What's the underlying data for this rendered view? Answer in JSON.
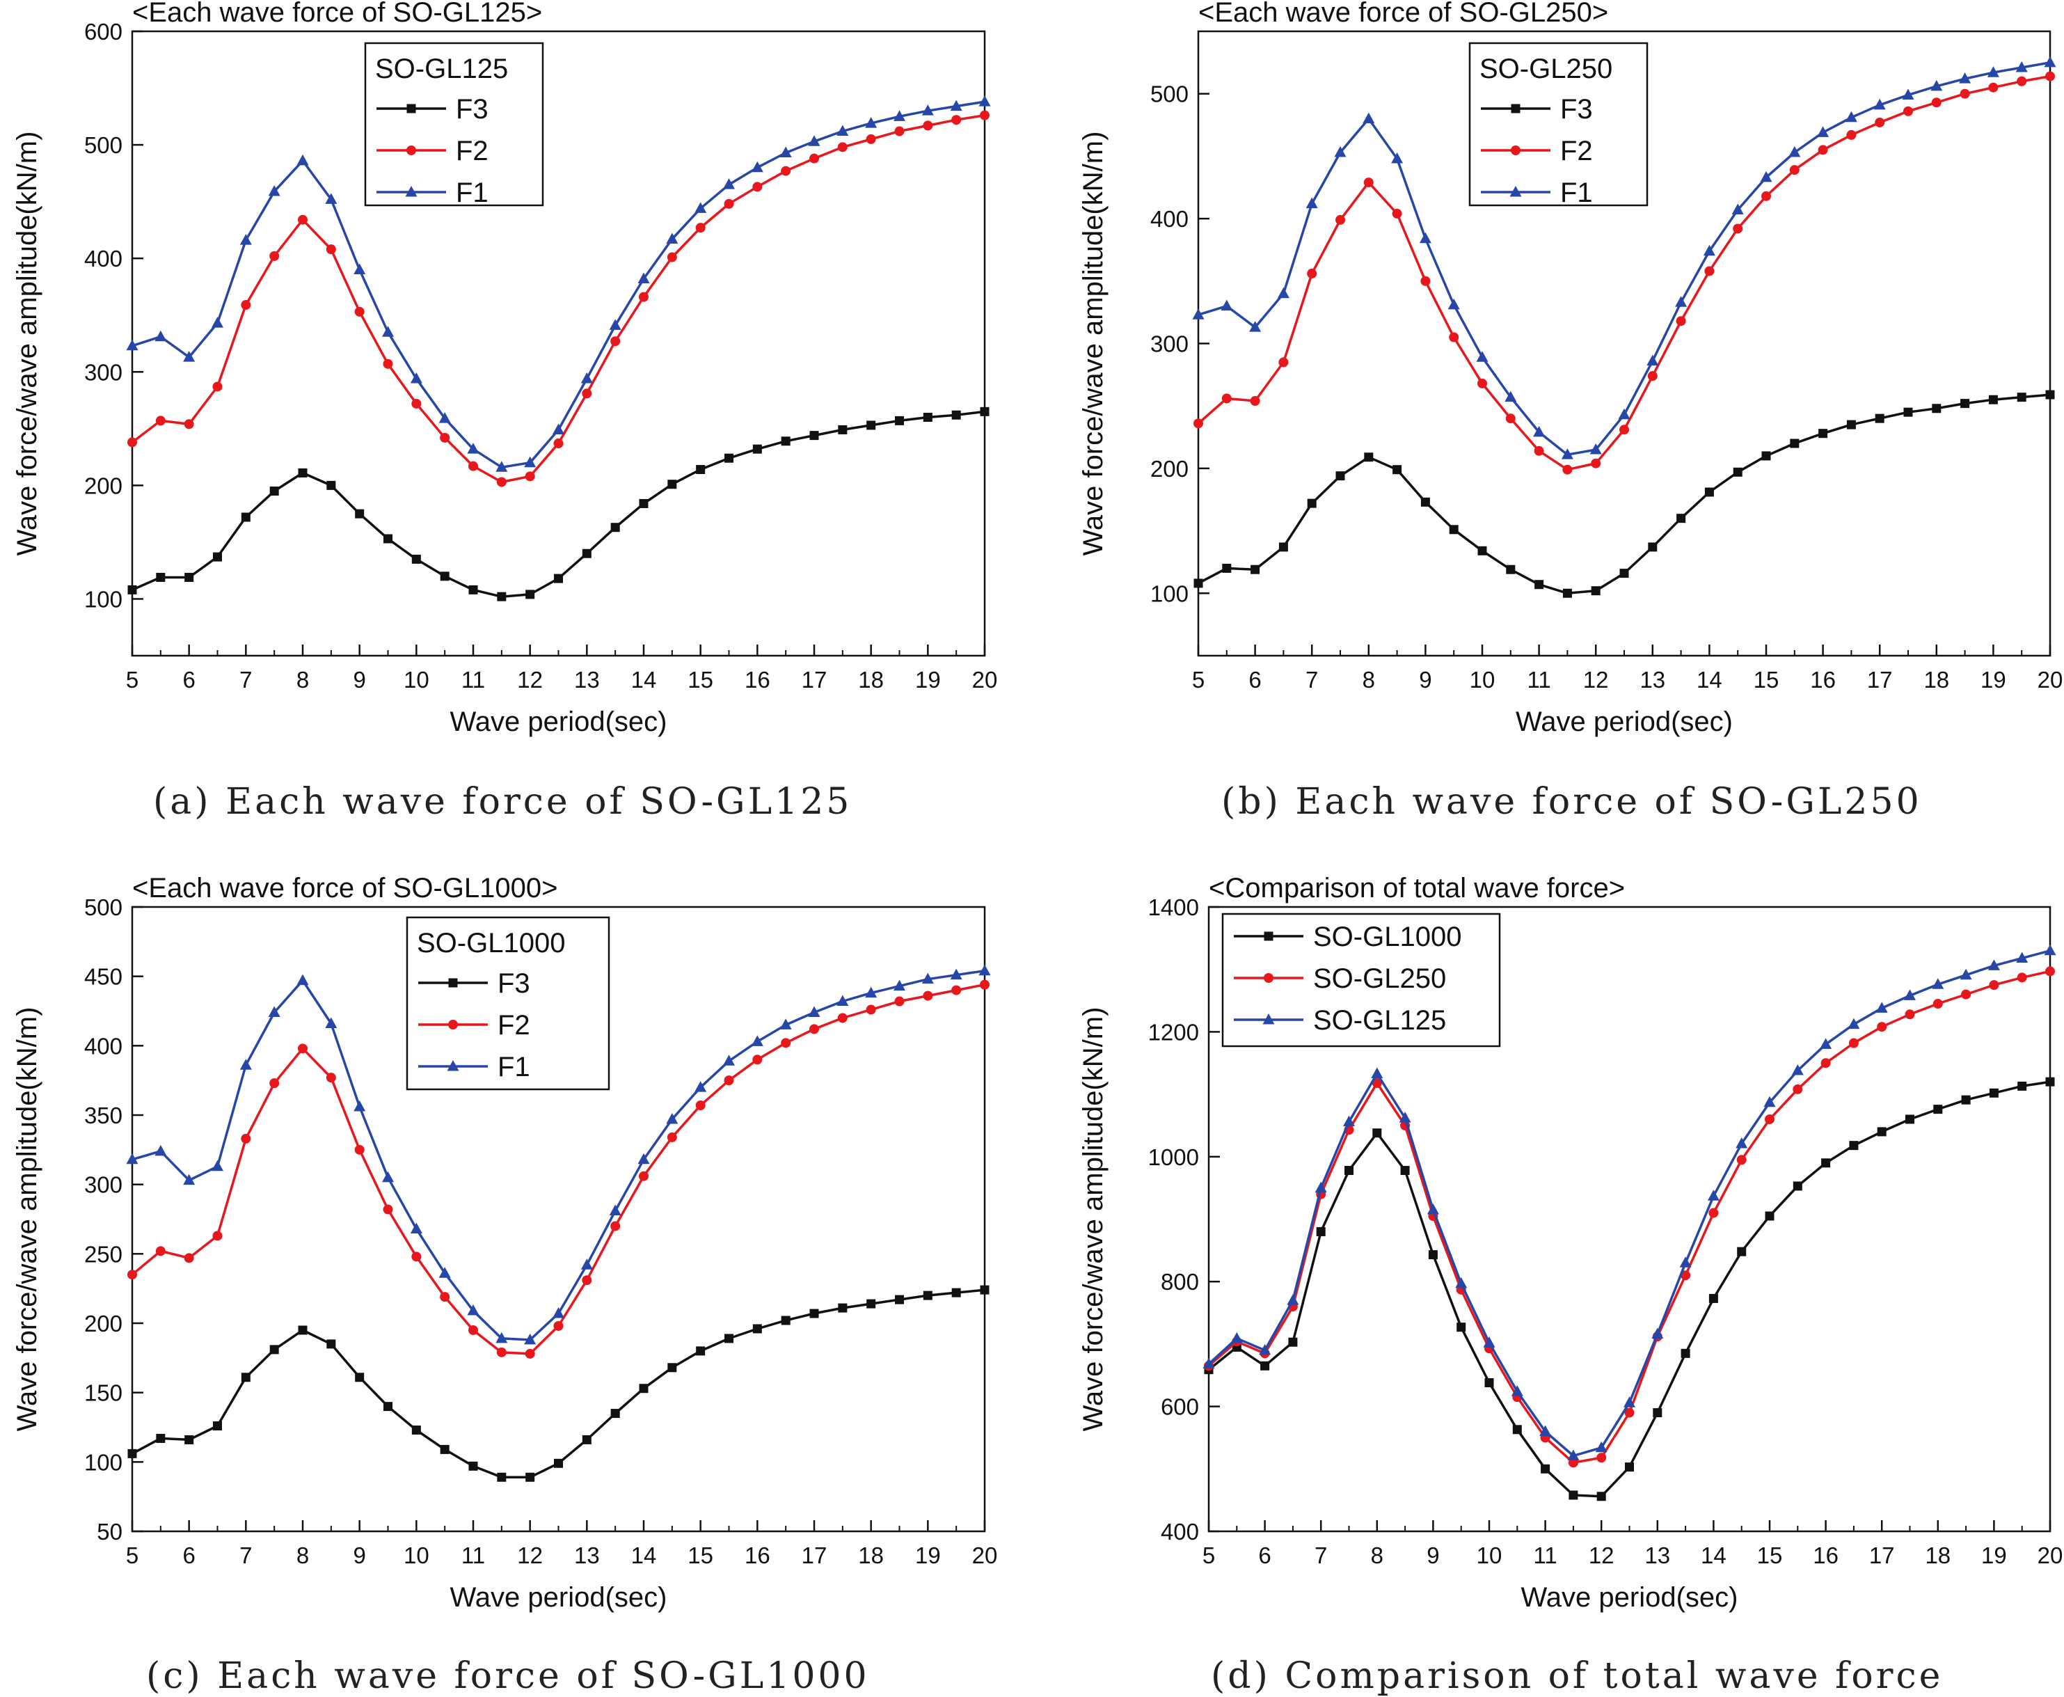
{
  "figure_captions": [
    "(a) Each wave force of SO-GL125",
    "(b) Each wave force of SO-GL250",
    "(c) Each wave force of SO-GL1000",
    "(d) Comparison of total wave force"
  ],
  "colors": {
    "F3": "#111111",
    "F2": "#e8171b",
    "F1": "#2747a8"
  },
  "chart_data": [
    {
      "type": "line",
      "title": "<Each wave force of SO-GL125>",
      "xlabel": "Wave period(sec)",
      "ylabel": "Wave force/wave amplitude(kN/m)",
      "xlim": [
        5,
        20
      ],
      "ylim": [
        50,
        600
      ],
      "xticks": [
        5,
        6,
        7,
        8,
        9,
        10,
        11,
        12,
        13,
        14,
        15,
        16,
        17,
        18,
        19,
        20
      ],
      "yticks": [
        100,
        200,
        300,
        400,
        500,
        600
      ],
      "legend_title": "SO-GL125",
      "legend_position": "top-left",
      "x": [
        5,
        5.5,
        6,
        6.5,
        7,
        7.5,
        8,
        8.5,
        9,
        9.5,
        10,
        10.5,
        11,
        11.5,
        12,
        12.5,
        13,
        13.5,
        14,
        14.5,
        15,
        15.5,
        16,
        16.5,
        17,
        17.5,
        18,
        18.5,
        19,
        19.5,
        20
      ],
      "series": [
        {
          "name": "F3",
          "color": "#111111",
          "marker": "square",
          "values": [
            108,
            119,
            119,
            137,
            172,
            195,
            211,
            200,
            175,
            153,
            135,
            120,
            108,
            102,
            104,
            118,
            140,
            163,
            184,
            201,
            214,
            224,
            232,
            239,
            244,
            249,
            253,
            257,
            260,
            262,
            265
          ]
        },
        {
          "name": "F2",
          "color": "#e8171b",
          "marker": "circle",
          "values": [
            238,
            257,
            254,
            287,
            359,
            402,
            434,
            408,
            353,
            307,
            272,
            242,
            217,
            203,
            208,
            237,
            281,
            327,
            366,
            401,
            427,
            448,
            463,
            477,
            488,
            498,
            505,
            512,
            517,
            522,
            526
          ]
        },
        {
          "name": "F1",
          "color": "#2747a8",
          "marker": "triangle",
          "values": [
            323,
            331,
            313,
            343,
            416,
            459,
            486,
            452,
            390,
            335,
            294,
            259,
            232,
            216,
            220,
            249,
            294,
            341,
            382,
            417,
            444,
            465,
            480,
            493,
            503,
            512,
            519,
            525,
            530,
            534,
            538
          ]
        }
      ]
    },
    {
      "type": "line",
      "title": "<Each wave force of SO-GL250>",
      "xlabel": "Wave period(sec)",
      "ylabel": "Wave force/wave amplitude(kN/m)",
      "xlim": [
        5,
        20
      ],
      "ylim": [
        50,
        550
      ],
      "xticks": [
        5,
        6,
        7,
        8,
        9,
        10,
        11,
        12,
        13,
        14,
        15,
        16,
        17,
        18,
        19,
        20
      ],
      "yticks": [
        100,
        200,
        300,
        400,
        500
      ],
      "legend_title": "SO-GL250",
      "legend_position": "top-left",
      "x": [
        5,
        5.5,
        6,
        6.5,
        7,
        7.5,
        8,
        8.5,
        9,
        9.5,
        10,
        10.5,
        11,
        11.5,
        12,
        12.5,
        13,
        13.5,
        14,
        14.5,
        15,
        15.5,
        16,
        16.5,
        17,
        17.5,
        18,
        18.5,
        19,
        19.5,
        20
      ],
      "series": [
        {
          "name": "F3",
          "color": "#111111",
          "marker": "square",
          "values": [
            108,
            120,
            119,
            137,
            172,
            194,
            209,
            199,
            173,
            151,
            134,
            119,
            107,
            100,
            102,
            116,
            137,
            160,
            181,
            197,
            210,
            220,
            228,
            235,
            240,
            245,
            248,
            252,
            255,
            257,
            259
          ]
        },
        {
          "name": "F2",
          "color": "#e8171b",
          "marker": "circle",
          "values": [
            236,
            256,
            254,
            285,
            356,
            399,
            429,
            404,
            350,
            305,
            268,
            240,
            214,
            199,
            204,
            231,
            274,
            318,
            358,
            392,
            418,
            439,
            455,
            467,
            477,
            486,
            493,
            500,
            505,
            510,
            514
          ]
        },
        {
          "name": "F1",
          "color": "#2747a8",
          "marker": "triangle",
          "values": [
            323,
            330,
            313,
            340,
            412,
            453,
            480,
            448,
            384,
            331,
            289,
            257,
            229,
            211,
            215,
            243,
            286,
            333,
            374,
            407,
            433,
            453,
            469,
            481,
            491,
            499,
            506,
            512,
            517,
            521,
            525
          ]
        }
      ]
    },
    {
      "type": "line",
      "title": "<Each wave force of SO-GL1000>",
      "xlabel": "Wave period(sec)",
      "ylabel": "Wave force/wave amplitude(kN/m)",
      "xlim": [
        5,
        20
      ],
      "ylim": [
        50,
        500
      ],
      "xticks": [
        5,
        6,
        7,
        8,
        9,
        10,
        11,
        12,
        13,
        14,
        15,
        16,
        17,
        18,
        19,
        20
      ],
      "yticks": [
        50,
        100,
        150,
        200,
        250,
        300,
        350,
        400,
        450,
        500
      ],
      "legend_title": "SO-GL1000",
      "legend_position": "top-left",
      "x": [
        5,
        5.5,
        6,
        6.5,
        7,
        7.5,
        8,
        8.5,
        9,
        9.5,
        10,
        10.5,
        11,
        11.5,
        12,
        12.5,
        13,
        13.5,
        14,
        14.5,
        15,
        15.5,
        16,
        16.5,
        17,
        17.5,
        18,
        18.5,
        19,
        19.5,
        20
      ],
      "series": [
        {
          "name": "F3",
          "color": "#111111",
          "marker": "square",
          "values": [
            106,
            117,
            116,
            126,
            161,
            181,
            195,
            185,
            161,
            140,
            123,
            109,
            97,
            89,
            89,
            99,
            116,
            135,
            153,
            168,
            180,
            189,
            196,
            202,
            207,
            211,
            214,
            217,
            220,
            222,
            224
          ]
        },
        {
          "name": "F2",
          "color": "#e8171b",
          "marker": "circle",
          "values": [
            235,
            252,
            247,
            263,
            333,
            373,
            398,
            377,
            325,
            282,
            248,
            219,
            195,
            179,
            178,
            198,
            231,
            270,
            306,
            334,
            357,
            375,
            390,
            402,
            412,
            420,
            426,
            432,
            436,
            440,
            444
          ]
        },
        {
          "name": "F1",
          "color": "#2747a8",
          "marker": "triangle",
          "values": [
            318,
            324,
            303,
            313,
            386,
            424,
            447,
            416,
            356,
            305,
            268,
            236,
            209,
            189,
            188,
            207,
            242,
            281,
            318,
            347,
            370,
            389,
            403,
            415,
            424,
            432,
            438,
            443,
            448,
            451,
            454
          ]
        }
      ]
    },
    {
      "type": "line",
      "title": "<Comparison of total wave force>",
      "xlabel": "Wave period(sec)",
      "ylabel": "Wave force/wave amplitude(kN/m)",
      "xlim": [
        5,
        20
      ],
      "ylim": [
        400,
        1400
      ],
      "xticks": [
        5,
        6,
        7,
        8,
        9,
        10,
        11,
        12,
        13,
        14,
        15,
        16,
        17,
        18,
        19,
        20
      ],
      "yticks": [
        400,
        600,
        800,
        1000,
        1200,
        1400
      ],
      "legend_title": "",
      "legend_position": "top-left",
      "x": [
        5,
        5.5,
        6,
        6.5,
        7,
        7.5,
        8,
        8.5,
        9,
        9.5,
        10,
        10.5,
        11,
        11.5,
        12,
        12.5,
        13,
        13.5,
        14,
        14.5,
        15,
        15.5,
        16,
        16.5,
        17,
        17.5,
        18,
        18.5,
        19,
        19.5,
        20
      ],
      "series": [
        {
          "name": "SO-GL1000",
          "color": "#111111",
          "marker": "square",
          "values": [
            659,
            695,
            665,
            703,
            880,
            978,
            1038,
            978,
            843,
            727,
            638,
            563,
            500,
            458,
            456,
            503,
            590,
            685,
            773,
            848,
            905,
            953,
            990,
            1018,
            1040,
            1060,
            1076,
            1091,
            1102,
            1113,
            1120
          ]
        },
        {
          "name": "SO-GL250",
          "color": "#e8171b",
          "marker": "circle",
          "values": [
            665,
            704,
            685,
            760,
            940,
            1043,
            1118,
            1050,
            905,
            787,
            693,
            615,
            550,
            510,
            518,
            590,
            712,
            810,
            910,
            995,
            1060,
            1108,
            1150,
            1182,
            1208,
            1228,
            1245,
            1260,
            1275,
            1287,
            1297
          ]
        },
        {
          "name": "SO-GL125",
          "color": "#2747a8",
          "marker": "triangle",
          "values": [
            668,
            709,
            690,
            770,
            950,
            1056,
            1133,
            1062,
            915,
            797,
            702,
            624,
            560,
            521,
            534,
            606,
            716,
            830,
            937,
            1021,
            1087,
            1138,
            1180,
            1212,
            1238,
            1258,
            1276,
            1291,
            1306,
            1318,
            1330
          ]
        }
      ]
    }
  ]
}
